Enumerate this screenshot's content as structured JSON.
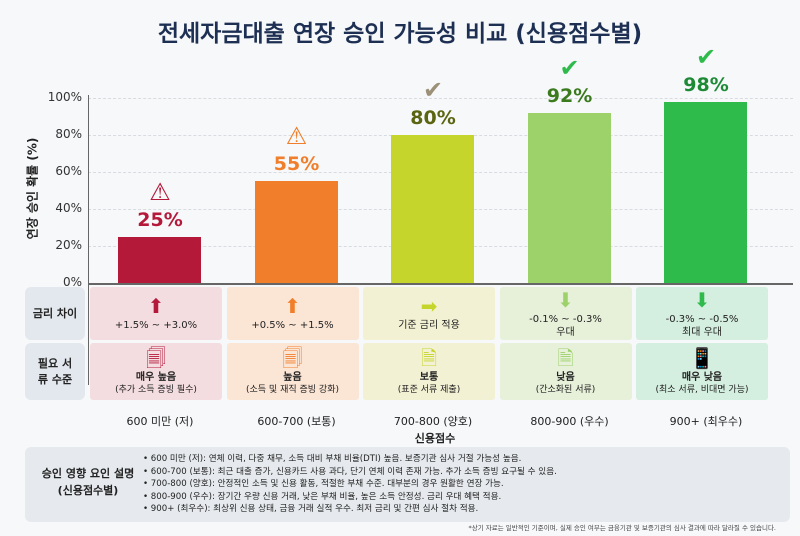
{
  "title": "전세자금대출 연장 승인 가능성 비교 (신용점수별)",
  "chart_data": {
    "type": "bar",
    "title": "전세자금대출 연장 승인 가능성 비교 (신용점수별)",
    "xlabel": "신용점수",
    "ylabel": "연장 승인 확률 (%)",
    "ylim": [
      0,
      100
    ],
    "yticks": [
      "0%",
      "20%",
      "40%",
      "60%",
      "80%",
      "100%"
    ],
    "categories": [
      "600 미만 (저)",
      "600-700 (보통)",
      "700-800 (양호)",
      "800-900 (우수)",
      "900+ (최우수)"
    ],
    "values": [
      25,
      55,
      80,
      92,
      98
    ],
    "value_labels": [
      "25%",
      "55%",
      "80%",
      "92%",
      "98%"
    ],
    "colors": [
      "#b5193a",
      "#f07e2a",
      "#c5d52c",
      "#9dd16a",
      "#2fbb4c"
    ],
    "badge_icons": [
      "warning-icon",
      "warning-icon",
      "check-icon",
      "check-circle-icon",
      "verified-badge-icon"
    ],
    "grid": true
  },
  "table": {
    "row_headers": [
      "금리 차이",
      "필요 서류 수준"
    ],
    "rate": [
      {
        "icon": "arrow-up-icon",
        "text": "+1.5% ~ +3.0%"
      },
      {
        "icon": "arrow-up-icon",
        "text": "+0.5% ~ +1.5%"
      },
      {
        "icon": "arrow-right-icon",
        "text": "기준 금리 적용"
      },
      {
        "icon": "arrow-down-icon",
        "text": "-0.1% ~ -0.3%",
        "sub": "우대"
      },
      {
        "icon": "arrow-down-icon",
        "text": "-0.3% ~ -0.5%",
        "sub": "최대 우대"
      }
    ],
    "docs": [
      {
        "icon": "documents-stack-icon",
        "text": "매우 높음",
        "sub": "(추가 소득 증빙 필수)"
      },
      {
        "icon": "documents-stack-icon",
        "text": "높음",
        "sub": "(소득 및 재직 증빙 강화)"
      },
      {
        "icon": "document-icon",
        "text": "보통",
        "sub": "(표준 서류 제출)"
      },
      {
        "icon": "document-icon",
        "text": "낮음",
        "sub": "(간소화된 서류)"
      },
      {
        "icon": "mobile-document-icon",
        "text": "매우 낮음",
        "sub": "(최소 서류, 비대면 가능)"
      }
    ],
    "cell_colors": [
      "#f4dde0",
      "#fbe5d5",
      "#f3f1d3",
      "#e7f0d9",
      "#d4eedf"
    ]
  },
  "explanation": {
    "heading": "승인 영향 요인 설명\n(신용점수별)",
    "heading_lines": [
      "승인 영향 요인 설명",
      "(신용점수별)"
    ],
    "items": [
      "• 600 미만 (저): 연체 이력, 다중 채무, 소득 대비 부채 비율(DTI) 높음. 보증기관 심사 거절 가능성 높음.",
      "• 600-700 (보통): 최근 대출 증가, 신용카드 사용 과다, 단기 연체 이력 존재 가능. 추가 소득 증빙 요구될 수 있음.",
      "• 700-800 (양호): 안정적인 소득 및 신용 활동, 적절한 부채 수준. 대부분의 경우 원활한 연장 가능.",
      "• 800-900 (우수): 장기간 우량 신용 거래, 낮은 부채 비율, 높은 소득 안정성. 금리 우대 혜택 적용.",
      "• 900+ (최우수): 최상위 신용 상태, 금융 거래 실적 우수. 최저 금리 및 간편 심사 절차 적용."
    ]
  },
  "footnote": "*상기 자료는 일반적인 기준이며, 실제 승인 여부는 금융기관 및 보증기관의 심사 결과에 따라 달라질 수 있습니다."
}
